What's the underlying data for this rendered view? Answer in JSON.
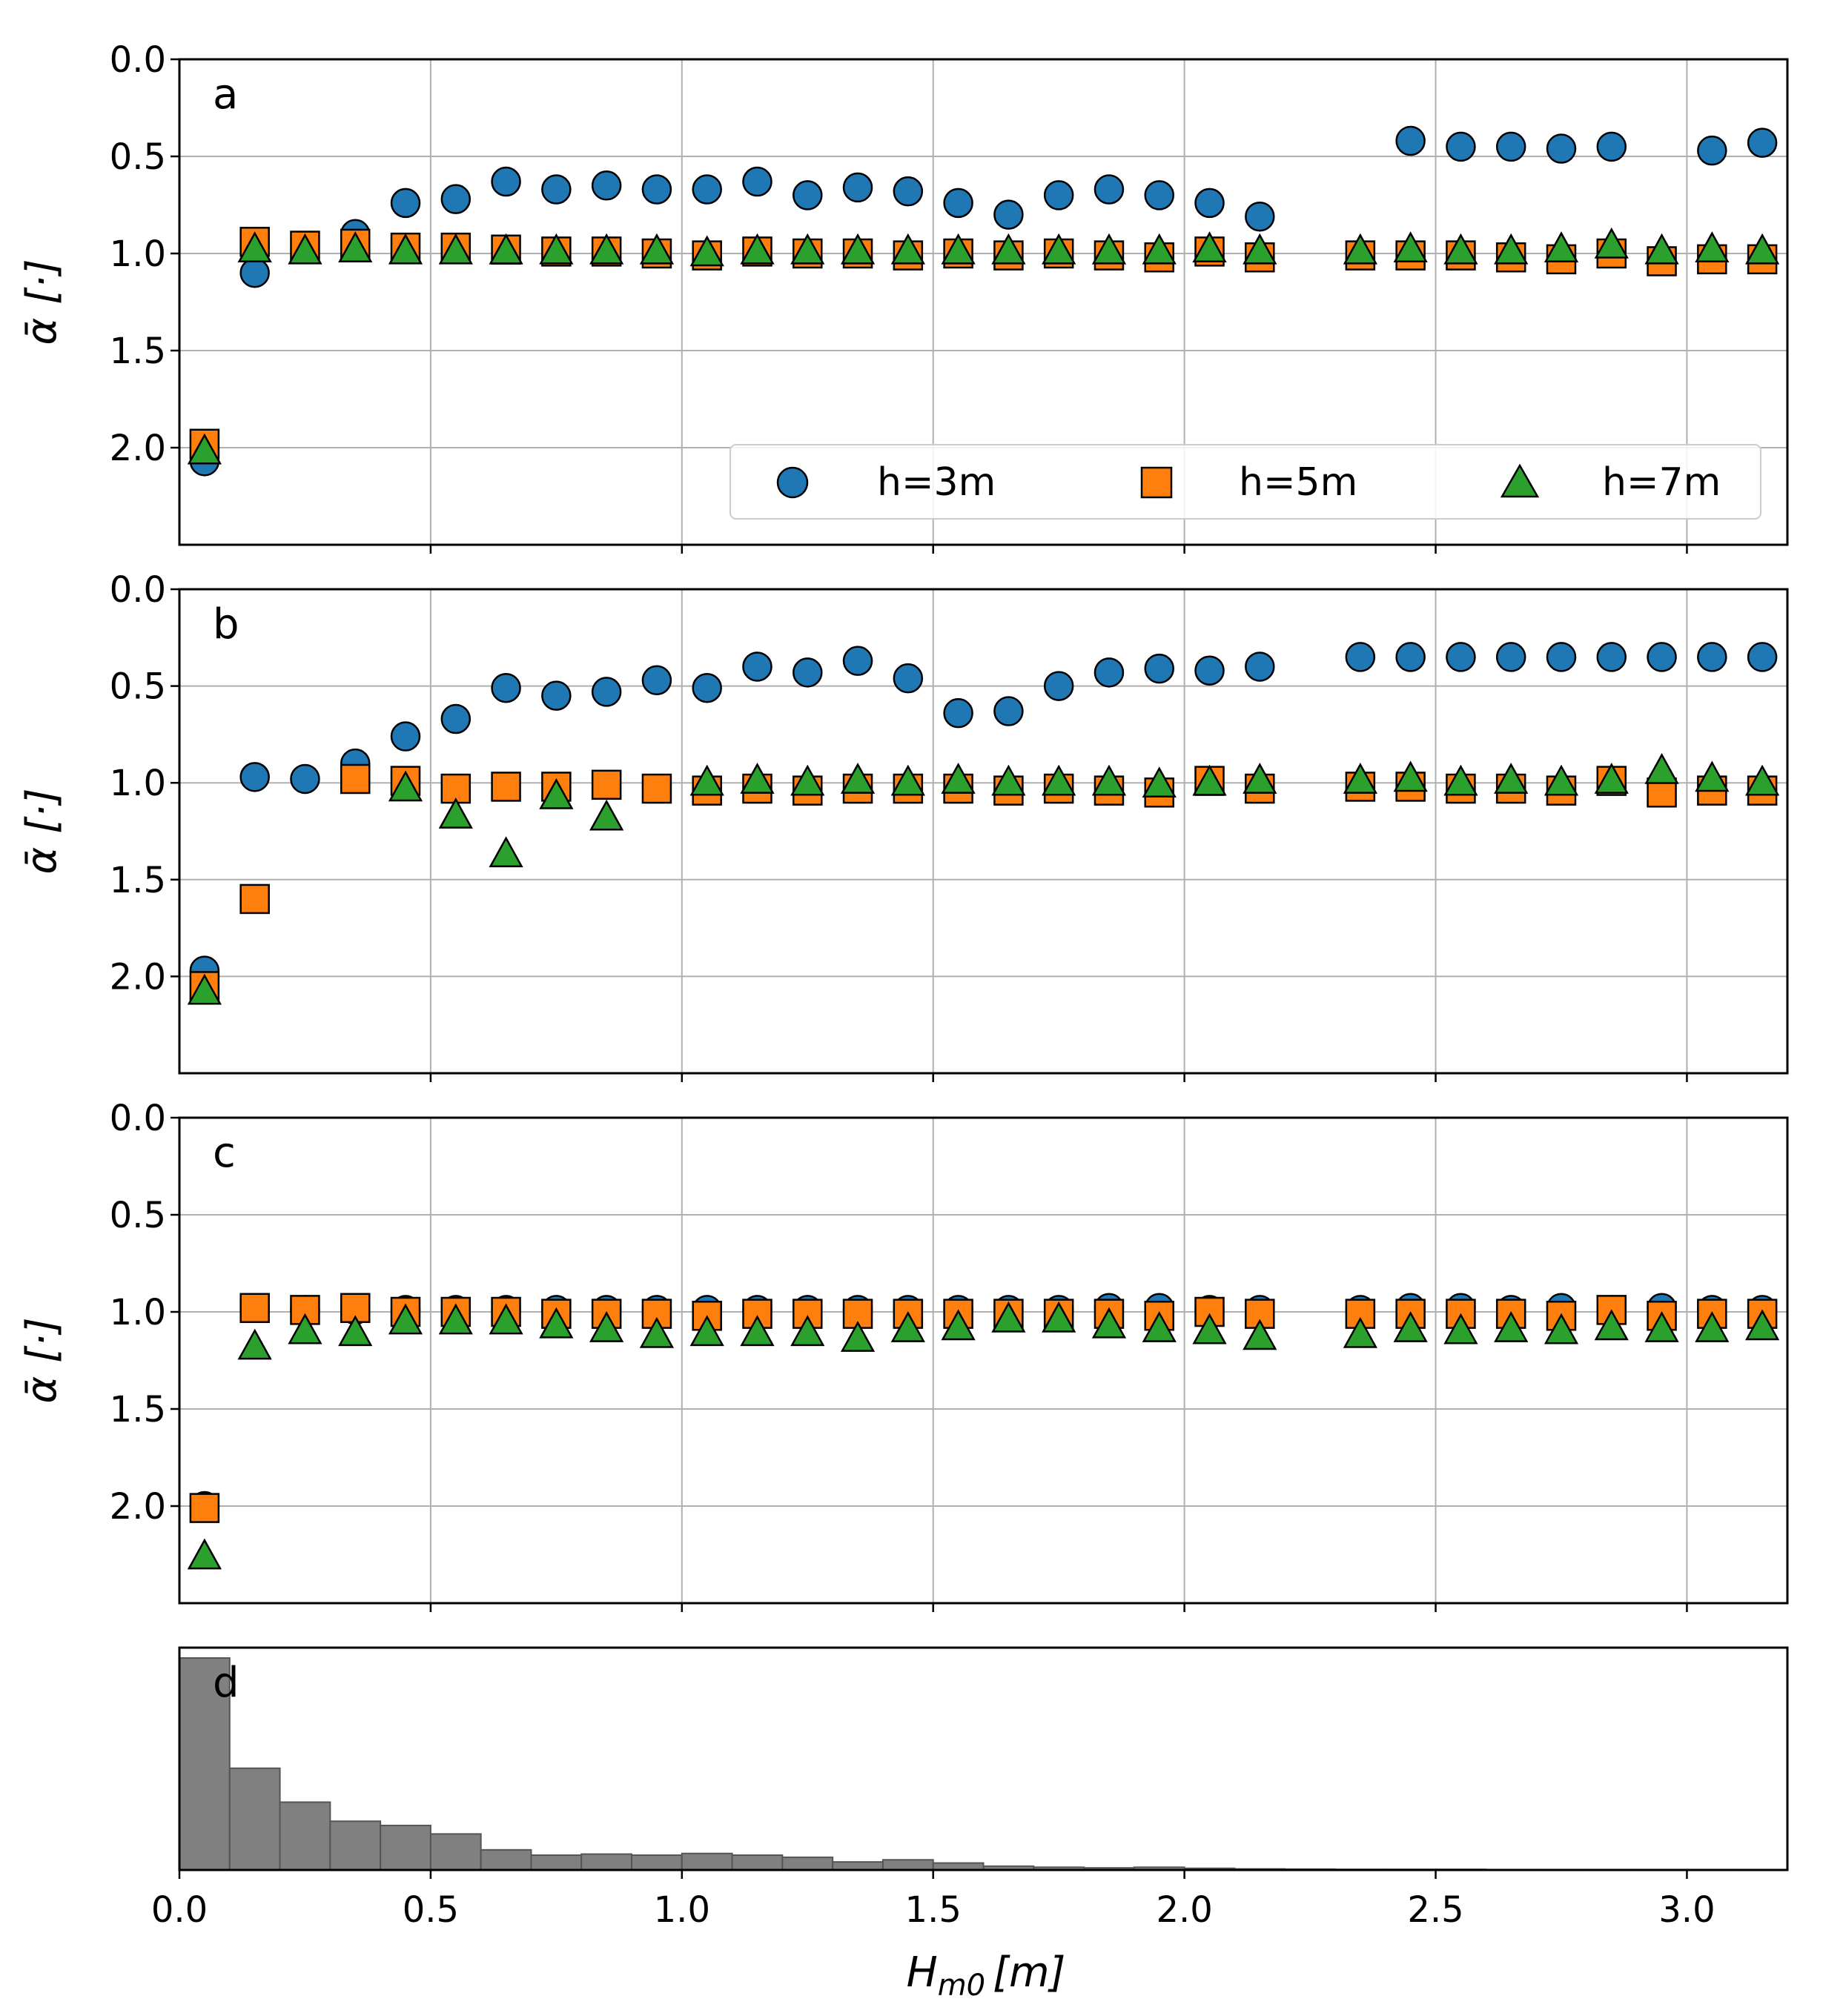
{
  "chart_data": [
    {
      "type": "scatter",
      "panel_label": "a",
      "ylabel": "ᾱ [·]",
      "ylim": [
        2.5,
        0.0
      ],
      "xlim": [
        0.0,
        3.2
      ],
      "y_ticks": [
        "0.0",
        "0.5",
        "1.0",
        "1.5",
        "2.0"
      ],
      "grid": true,
      "legend": {
        "location": "lower-right",
        "entries": [
          "h=3m",
          "h=5m",
          "h=7m"
        ]
      },
      "series": [
        {
          "name": "h=3m",
          "marker": "circle",
          "color": "#1f77b4",
          "x": [
            0.05,
            0.15,
            0.35,
            0.45,
            0.55,
            0.65,
            0.75,
            0.85,
            0.95,
            1.05,
            1.15,
            1.25,
            1.35,
            1.45,
            1.55,
            1.65,
            1.75,
            1.85,
            1.95,
            2.05,
            2.15,
            2.45,
            2.55,
            2.65,
            2.75,
            2.85,
            3.05,
            3.15
          ],
          "y": [
            2.07,
            1.1,
            0.9,
            0.74,
            0.72,
            0.63,
            0.67,
            0.65,
            0.67,
            0.67,
            0.63,
            0.7,
            0.66,
            0.68,
            0.74,
            0.8,
            0.7,
            0.67,
            0.7,
            0.74,
            0.81,
            0.42,
            0.45,
            0.45,
            0.46,
            0.45,
            0.47,
            0.43
          ]
        },
        {
          "name": "h=5m",
          "marker": "square",
          "color": "#ff7f0e",
          "x": [
            0.05,
            0.15,
            0.25,
            0.35,
            0.45,
            0.55,
            0.65,
            0.75,
            0.85,
            0.95,
            1.05,
            1.15,
            1.25,
            1.35,
            1.45,
            1.55,
            1.65,
            1.75,
            1.85,
            1.95,
            2.05,
            2.15,
            2.35,
            2.45,
            2.55,
            2.65,
            2.75,
            2.85,
            2.95,
            3.05,
            3.15
          ],
          "y": [
            1.98,
            0.94,
            0.96,
            0.95,
            0.97,
            0.97,
            0.98,
            0.99,
            0.99,
            1.0,
            1.01,
            0.99,
            1.0,
            1.0,
            1.01,
            1.0,
            1.01,
            1.0,
            1.01,
            1.02,
            0.99,
            1.02,
            1.01,
            1.01,
            1.01,
            1.02,
            1.03,
            1.0,
            1.04,
            1.03,
            1.03
          ]
        },
        {
          "name": "h=7m",
          "marker": "triangle",
          "color": "#2ca02c",
          "x": [
            0.05,
            0.15,
            0.25,
            0.35,
            0.45,
            0.55,
            0.65,
            0.75,
            0.85,
            0.95,
            1.05,
            1.15,
            1.25,
            1.35,
            1.45,
            1.55,
            1.65,
            1.75,
            1.85,
            1.95,
            2.05,
            2.15,
            2.35,
            2.45,
            2.55,
            2.65,
            2.75,
            2.85,
            2.95,
            3.05,
            3.15
          ],
          "y": [
            2.02,
            0.98,
            0.99,
            0.98,
            0.99,
            0.99,
            0.99,
            0.99,
            0.99,
            0.99,
            1.0,
            0.99,
            0.99,
            0.99,
            0.99,
            0.99,
            0.99,
            0.99,
            0.99,
            0.99,
            0.98,
            0.99,
            0.99,
            0.98,
            0.99,
            0.99,
            0.98,
            0.96,
            0.99,
            0.98,
            0.99
          ]
        }
      ]
    },
    {
      "type": "scatter",
      "panel_label": "b",
      "ylabel": "ᾱ [·]",
      "ylim": [
        2.5,
        0.0
      ],
      "xlim": [
        0.0,
        3.2
      ],
      "y_ticks": [
        "0.0",
        "0.5",
        "1.0",
        "1.5",
        "2.0"
      ],
      "grid": true,
      "series": [
        {
          "name": "h=3m",
          "marker": "circle",
          "color": "#1f77b4",
          "x": [
            0.05,
            0.15,
            0.25,
            0.35,
            0.45,
            0.55,
            0.65,
            0.75,
            0.85,
            0.95,
            1.05,
            1.15,
            1.25,
            1.35,
            1.45,
            1.55,
            1.65,
            1.75,
            1.85,
            1.95,
            2.05,
            2.15,
            2.35,
            2.45,
            2.55,
            2.65,
            2.75,
            2.85,
            2.95,
            3.05,
            3.15
          ],
          "y": [
            1.97,
            0.97,
            0.98,
            0.9,
            0.76,
            0.67,
            0.51,
            0.55,
            0.53,
            0.47,
            0.51,
            0.4,
            0.43,
            0.37,
            0.46,
            0.64,
            0.63,
            0.5,
            0.43,
            0.41,
            0.42,
            0.4,
            0.35,
            0.35,
            0.35,
            0.35,
            0.35,
            0.35,
            0.35,
            0.35,
            0.35
          ]
        },
        {
          "name": "h=5m",
          "marker": "square",
          "color": "#ff7f0e",
          "x": [
            0.05,
            0.15,
            0.35,
            0.45,
            0.55,
            0.65,
            0.75,
            0.85,
            0.95,
            1.05,
            1.15,
            1.25,
            1.35,
            1.45,
            1.55,
            1.65,
            1.75,
            1.85,
            1.95,
            2.05,
            2.15,
            2.35,
            2.45,
            2.55,
            2.65,
            2.75,
            2.85,
            2.95,
            3.05,
            3.15
          ],
          "y": [
            2.05,
            1.6,
            0.98,
            0.99,
            1.03,
            1.02,
            1.02,
            1.01,
            1.03,
            1.04,
            1.03,
            1.04,
            1.03,
            1.03,
            1.03,
            1.04,
            1.03,
            1.04,
            1.05,
            0.99,
            1.03,
            1.02,
            1.02,
            1.03,
            1.03,
            1.04,
            0.99,
            1.05,
            1.04,
            1.04
          ]
        },
        {
          "name": "h=7m",
          "marker": "triangle",
          "color": "#2ca02c",
          "x": [
            0.05,
            0.45,
            0.55,
            0.65,
            0.75,
            0.85,
            1.05,
            1.15,
            1.25,
            1.35,
            1.45,
            1.55,
            1.65,
            1.75,
            1.85,
            1.95,
            2.05,
            2.15,
            2.35,
            2.45,
            2.55,
            2.65,
            2.75,
            2.85,
            2.95,
            3.05,
            3.15
          ],
          "y": [
            2.08,
            1.03,
            1.17,
            1.37,
            1.07,
            1.18,
            1.0,
            0.99,
            1.0,
            0.99,
            1.0,
            0.99,
            1.0,
            1.0,
            1.0,
            1.01,
            1.0,
            0.99,
            0.99,
            0.98,
            1.0,
            0.99,
            1.0,
            0.99,
            0.94,
            0.98,
            1.0
          ]
        }
      ]
    },
    {
      "type": "scatter",
      "panel_label": "c",
      "ylabel": "ᾱ [·]",
      "ylim": [
        2.5,
        0.0
      ],
      "xlim": [
        0.0,
        3.2
      ],
      "y_ticks": [
        "0.0",
        "0.5",
        "1.0",
        "1.5",
        "2.0"
      ],
      "grid": true,
      "series": [
        {
          "name": "h=3m",
          "marker": "circle",
          "color": "#1f77b4",
          "x": [
            0.05,
            0.15,
            0.25,
            0.35,
            0.45,
            0.55,
            0.65,
            0.75,
            0.85,
            0.95,
            1.05,
            1.15,
            1.25,
            1.35,
            1.45,
            1.55,
            1.65,
            1.75,
            1.85,
            1.95,
            2.05,
            2.15,
            2.35,
            2.45,
            2.55,
            2.65,
            2.75,
            2.85,
            2.95,
            3.05,
            3.15
          ],
          "y": [
            2.0,
            0.98,
            0.99,
            0.99,
            0.99,
            0.99,
            0.99,
            0.99,
            0.99,
            0.99,
            0.99,
            0.99,
            0.99,
            0.99,
            0.99,
            0.99,
            0.99,
            0.99,
            0.98,
            0.98,
            0.99,
            0.99,
            0.99,
            0.98,
            0.98,
            0.99,
            0.98,
            0.99,
            0.98,
            0.99,
            0.99
          ]
        },
        {
          "name": "h=5m",
          "marker": "square",
          "color": "#ff7f0e",
          "x": [
            0.05,
            0.15,
            0.25,
            0.35,
            0.45,
            0.55,
            0.65,
            0.75,
            0.85,
            0.95,
            1.05,
            1.15,
            1.25,
            1.35,
            1.45,
            1.55,
            1.65,
            1.75,
            1.85,
            1.95,
            2.05,
            2.15,
            2.35,
            2.45,
            2.55,
            2.65,
            2.75,
            2.85,
            2.95,
            3.05,
            3.15
          ],
          "y": [
            2.01,
            0.98,
            0.99,
            0.98,
            1.0,
            1.0,
            1.0,
            1.01,
            1.01,
            1.01,
            1.02,
            1.01,
            1.01,
            1.01,
            1.01,
            1.01,
            1.01,
            1.01,
            1.01,
            1.02,
            1.0,
            1.01,
            1.01,
            1.01,
            1.01,
            1.01,
            1.02,
            0.99,
            1.02,
            1.01,
            1.01
          ]
        },
        {
          "name": "h=7m",
          "marker": "triangle",
          "color": "#2ca02c",
          "x": [
            0.05,
            0.15,
            0.25,
            0.35,
            0.45,
            0.55,
            0.65,
            0.75,
            0.85,
            0.95,
            1.05,
            1.15,
            1.25,
            1.35,
            1.45,
            1.55,
            1.65,
            1.75,
            1.85,
            1.95,
            2.05,
            2.15,
            2.35,
            2.45,
            2.55,
            2.65,
            2.75,
            2.85,
            2.95,
            3.05,
            3.15
          ],
          "y": [
            2.26,
            1.18,
            1.1,
            1.11,
            1.05,
            1.05,
            1.05,
            1.07,
            1.09,
            1.12,
            1.11,
            1.11,
            1.11,
            1.14,
            1.09,
            1.08,
            1.04,
            1.04,
            1.07,
            1.09,
            1.1,
            1.13,
            1.12,
            1.09,
            1.1,
            1.09,
            1.1,
            1.08,
            1.09,
            1.09,
            1.08
          ]
        }
      ]
    },
    {
      "type": "bar",
      "panel_label": "d",
      "subtype": "histogram",
      "color": "#808080",
      "xlabel_main": "H",
      "xlabel_sub": "m0",
      "xlabel_unit": "[m]",
      "xlim": [
        0.0,
        3.2
      ],
      "x_ticks": [
        "0.0",
        "0.5",
        "1.0",
        "1.5",
        "2.0",
        "2.5",
        "3.0"
      ],
      "bin_width": 0.1,
      "bin_starts": [
        0.0,
        0.1,
        0.2,
        0.3,
        0.4,
        0.5,
        0.6,
        0.7,
        0.8,
        0.9,
        1.0,
        1.1,
        1.2,
        1.3,
        1.4,
        1.5,
        1.6,
        1.7,
        1.8,
        1.9,
        2.0,
        2.1,
        2.2,
        2.3,
        2.4,
        2.5,
        2.6,
        2.7,
        2.8,
        2.9,
        3.0,
        3.1
      ],
      "relative_counts": [
        1.0,
        0.48,
        0.32,
        0.23,
        0.21,
        0.17,
        0.095,
        0.07,
        0.075,
        0.07,
        0.078,
        0.07,
        0.06,
        0.038,
        0.048,
        0.033,
        0.018,
        0.013,
        0.01,
        0.013,
        0.008,
        0.005,
        0.004,
        0.003,
        0.003,
        0.003,
        0.002,
        0.002,
        0.002,
        0.002,
        0.002,
        0.002
      ]
    }
  ]
}
